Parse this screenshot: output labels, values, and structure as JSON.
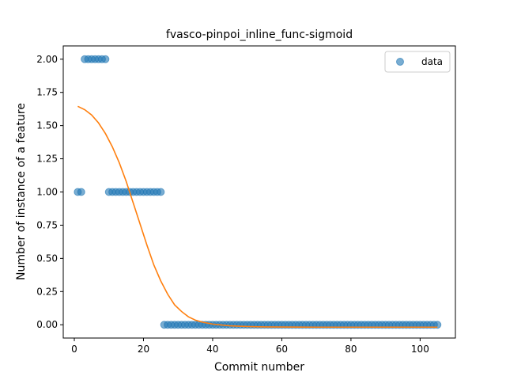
{
  "chart_data": {
    "type": "scatter",
    "title": "fvasco-pinpoi_inline_func-sigmoid",
    "xlabel": "Commit number",
    "ylabel": "Number of instance of a feature",
    "xlim": [
      -3.2,
      110.2
    ],
    "ylim": [
      -0.1,
      2.1
    ],
    "xticks": [
      0,
      20,
      40,
      60,
      80,
      100
    ],
    "yticks": [
      0.0,
      0.25,
      0.5,
      0.75,
      1.0,
      1.25,
      1.5,
      1.75,
      2.0
    ],
    "ytick_labels": [
      "0.00",
      "0.25",
      "0.50",
      "0.75",
      "1.00",
      "1.25",
      "1.50",
      "1.75",
      "2.00"
    ],
    "legend": {
      "position": "top-right",
      "entries": [
        "data"
      ]
    },
    "colors": {
      "data": "#1f77b4",
      "fit": "#ff7f0e"
    },
    "series": [
      {
        "name": "data",
        "kind": "points",
        "x": [
          1,
          2,
          3,
          4,
          5,
          6,
          7,
          8,
          9,
          10,
          11,
          12,
          13,
          14,
          15,
          16,
          17,
          18,
          19,
          20,
          21,
          22,
          23,
          24,
          25,
          26,
          27,
          28,
          29,
          30,
          31,
          32,
          33,
          34,
          35,
          36,
          37,
          38,
          39,
          40,
          41,
          42,
          43,
          44,
          45,
          46,
          47,
          48,
          49,
          50,
          51,
          52,
          53,
          54,
          55,
          56,
          57,
          58,
          59,
          60,
          61,
          62,
          63,
          64,
          65,
          66,
          67,
          68,
          69,
          70,
          71,
          72,
          73,
          74,
          75,
          76,
          77,
          78,
          79,
          80,
          81,
          82,
          83,
          84,
          85,
          86,
          87,
          88,
          89,
          90,
          91,
          92,
          93,
          94,
          95,
          96,
          97,
          98,
          99,
          100,
          101,
          102,
          103,
          104,
          105
        ],
        "y": [
          1,
          1,
          2,
          2,
          2,
          2,
          2,
          2,
          2,
          1,
          1,
          1,
          1,
          1,
          1,
          1,
          1,
          1,
          1,
          1,
          1,
          1,
          1,
          1,
          1,
          0,
          0,
          0,
          0,
          0,
          0,
          0,
          0,
          0,
          0,
          0,
          0,
          0,
          0,
          0,
          0,
          0,
          0,
          0,
          0,
          0,
          0,
          0,
          0,
          0,
          0,
          0,
          0,
          0,
          0,
          0,
          0,
          0,
          0,
          0,
          0,
          0,
          0,
          0,
          0,
          0,
          0,
          0,
          0,
          0,
          0,
          0,
          0,
          0,
          0,
          0,
          0,
          0,
          0,
          0,
          0,
          0,
          0,
          0,
          0,
          0,
          0,
          0,
          0,
          0,
          0,
          0,
          0,
          0,
          0,
          0,
          0,
          0,
          0,
          0,
          0,
          0,
          0,
          0,
          0
        ]
      },
      {
        "kind": "fit-line",
        "x": [
          1,
          3,
          5,
          7,
          9,
          11,
          13,
          15,
          17,
          19,
          21,
          23,
          25,
          27,
          29,
          31,
          33,
          35,
          37,
          40,
          45,
          50,
          55,
          60,
          70,
          80,
          90,
          100,
          105
        ],
        "y": [
          1.645,
          1.62,
          1.58,
          1.52,
          1.44,
          1.34,
          1.22,
          1.08,
          0.92,
          0.76,
          0.6,
          0.45,
          0.33,
          0.23,
          0.15,
          0.1,
          0.06,
          0.035,
          0.02,
          0.005,
          -0.008,
          -0.013,
          -0.016,
          -0.017,
          -0.018,
          -0.018,
          -0.018,
          -0.018,
          -0.018
        ]
      }
    ]
  }
}
